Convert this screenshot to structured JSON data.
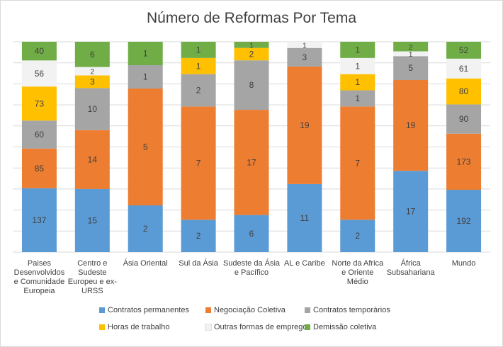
{
  "chart_data": {
    "type": "bar",
    "stacked": true,
    "normalized": true,
    "title": "Número de Reformas Por Tema",
    "xlabel": "",
    "ylabel": "",
    "ylim": [
      0,
      1
    ],
    "grid": true,
    "legend_position": "bottom",
    "categories": [
      [
        "Paises",
        "Desenvolvidos",
        "e Comunidade",
        "Europeia"
      ],
      [
        "Centro e",
        "Sudeste",
        "Europeu e ex-",
        "URSS"
      ],
      [
        "Ásia Oriental"
      ],
      [
        "Sul da Ásia"
      ],
      [
        "Sudeste da Ásia",
        "e Pacífico"
      ],
      [
        "AL e Caribe"
      ],
      [
        "Norte da Africa",
        "e Oriente",
        "Médio"
      ],
      [
        "África",
        "Subsahariana"
      ],
      [
        "Mundo"
      ]
    ],
    "series": [
      {
        "name": "Contratos permanentes",
        "color": "#5b9bd5",
        "values": [
          137,
          15,
          2,
          2,
          6,
          11,
          2,
          17,
          192
        ]
      },
      {
        "name": "Negociação Coletiva",
        "color": "#ed7d31",
        "values": [
          85,
          14,
          5,
          7,
          17,
          19,
          7,
          19,
          173
        ]
      },
      {
        "name": "Contratos temporários",
        "color": "#a5a5a5",
        "values": [
          60,
          10,
          1,
          2,
          8,
          3,
          1,
          5,
          90
        ]
      },
      {
        "name": "Horas de trabalho",
        "color": "#ffc000",
        "values": [
          73,
          3,
          0,
          1,
          2,
          0,
          1,
          0,
          80
        ]
      },
      {
        "name": "Outras formas de emprego",
        "color": "#f2f2f2",
        "values": [
          56,
          2,
          0,
          0,
          0,
          1,
          1,
          1,
          61
        ]
      },
      {
        "name": "Demissão coletiva",
        "color": "#70ad47",
        "values": [
          40,
          6,
          1,
          1,
          1,
          0,
          1,
          2,
          52
        ]
      }
    ]
  }
}
